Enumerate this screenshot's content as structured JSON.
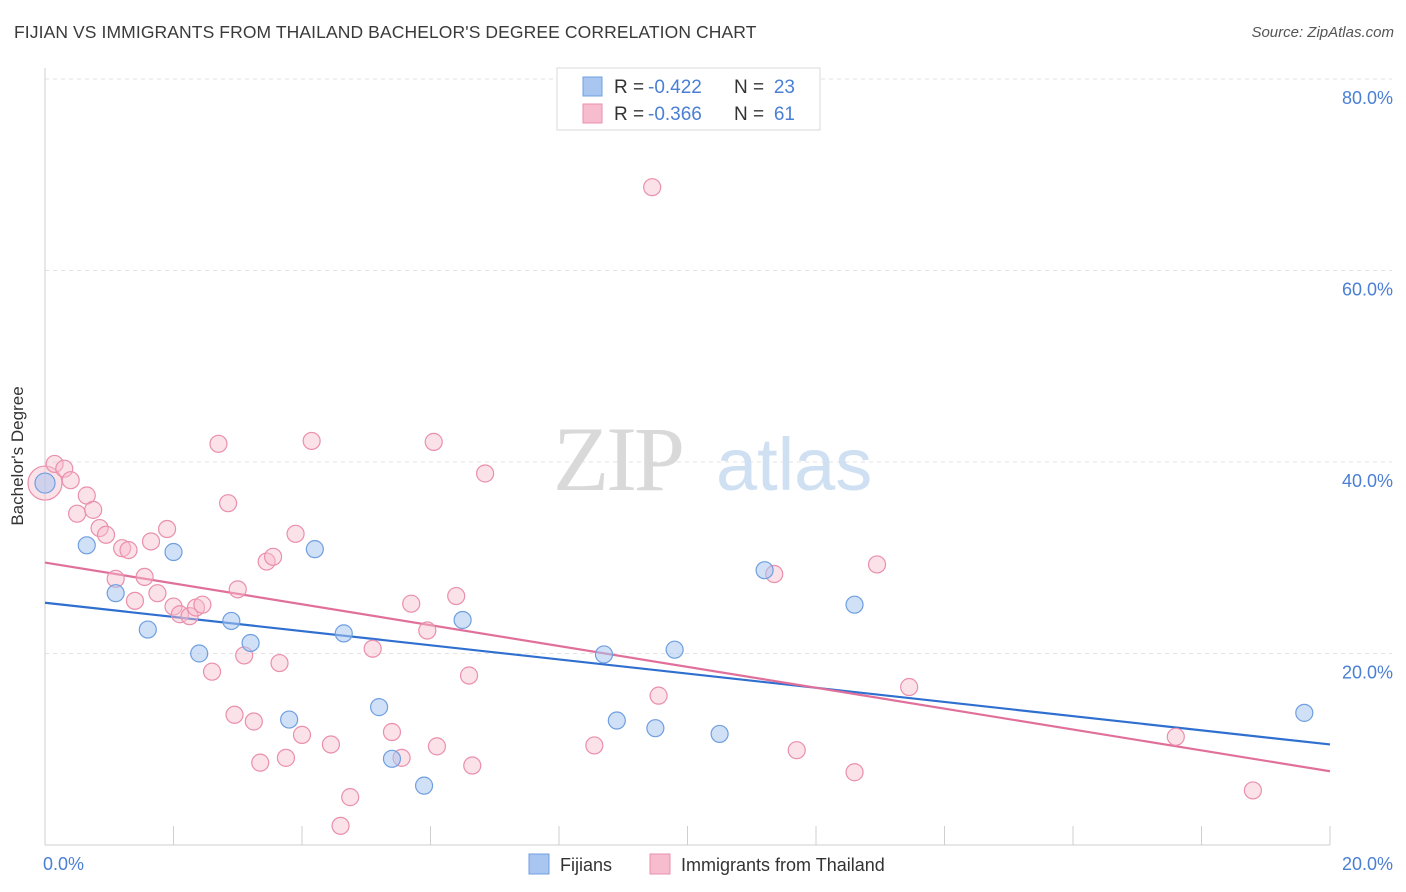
{
  "title": "FIJIAN VS IMMIGRANTS FROM THAILAND BACHELOR'S DEGREE CORRELATION CHART",
  "source": "Source: ZipAtlas.com",
  "watermark": {
    "zip": "ZIP",
    "atlas": "atlas"
  },
  "legend_top": [
    {
      "r_label": "R = ",
      "r_value": "-0.422",
      "n_label": "N = ",
      "n_value": "23",
      "color": "#a9c6f0",
      "border": "#6f9fe0"
    },
    {
      "r_label": "R = ",
      "r_value": "-0.366",
      "n_label": "N = ",
      "n_value": "61",
      "color": "#f7bccd",
      "border": "#ea8fac"
    }
  ],
  "legend_bottom": [
    {
      "label": "Fijians",
      "color": "#a9c6f0",
      "border": "#6f9fe0"
    },
    {
      "label": "Immigrants from Thailand",
      "color": "#f7bccd",
      "border": "#ea8fac"
    }
  ],
  "colors": {
    "accent_text": "#4a7fd4",
    "blue_line": "#2f6fcf",
    "pink_line": "#e0709a"
  },
  "chart_data": {
    "type": "scatter",
    "title": "FIJIAN VS IMMIGRANTS FROM THAILAND BACHELOR'S DEGREE CORRELATION CHART",
    "xlabel": "",
    "ylabel": "Bachelor's Degree",
    "xlim": [
      0,
      20
    ],
    "ylim": [
      0,
      80
    ],
    "x_tick_labels": [
      "0.0%",
      "20.0%"
    ],
    "y_ticks": [
      20,
      40,
      60,
      80
    ],
    "y_tick_labels": [
      "20.0%",
      "40.0%",
      "60.0%",
      "80.0%"
    ],
    "grid": true,
    "legend_placement": "top-center",
    "series": [
      {
        "name": "Fijians",
        "points": [
          [
            0.0,
            37.8
          ],
          [
            0.65,
            31.3
          ],
          [
            1.1,
            26.3
          ],
          [
            1.6,
            22.5
          ],
          [
            2.0,
            30.6
          ],
          [
            2.4,
            20.0
          ],
          [
            2.9,
            23.4
          ],
          [
            3.2,
            21.1
          ],
          [
            3.8,
            13.1
          ],
          [
            4.2,
            30.9
          ],
          [
            4.65,
            22.1
          ],
          [
            5.2,
            14.4
          ],
          [
            5.4,
            9.0
          ],
          [
            5.9,
            6.2
          ],
          [
            6.5,
            23.5
          ],
          [
            8.7,
            19.9
          ],
          [
            8.9,
            13.0
          ],
          [
            9.5,
            12.2
          ],
          [
            9.8,
            20.4
          ],
          [
            10.5,
            11.6
          ],
          [
            11.2,
            28.7
          ],
          [
            12.6,
            25.1
          ],
          [
            19.6,
            13.8
          ]
        ],
        "trend": [
          [
            0,
            25.3
          ],
          [
            20,
            10.5
          ]
        ]
      },
      {
        "name": "Immigrants from Thailand",
        "points": [
          [
            0.0,
            37.8
          ],
          [
            0.15,
            39.8
          ],
          [
            0.3,
            39.3
          ],
          [
            0.4,
            38.1
          ],
          [
            0.5,
            34.6
          ],
          [
            0.65,
            36.5
          ],
          [
            0.75,
            35.0
          ],
          [
            0.85,
            33.1
          ],
          [
            0.95,
            32.4
          ],
          [
            1.1,
            27.8
          ],
          [
            1.2,
            31.0
          ],
          [
            1.3,
            30.8
          ],
          [
            1.4,
            25.5
          ],
          [
            1.55,
            28.0
          ],
          [
            1.65,
            31.7
          ],
          [
            1.75,
            26.3
          ],
          [
            1.9,
            33.0
          ],
          [
            2.0,
            24.9
          ],
          [
            2.1,
            24.1
          ],
          [
            2.25,
            23.9
          ],
          [
            2.35,
            24.8
          ],
          [
            2.45,
            25.1
          ],
          [
            2.6,
            18.1
          ],
          [
            2.7,
            41.9
          ],
          [
            2.85,
            35.7
          ],
          [
            2.95,
            13.6
          ],
          [
            3.0,
            26.7
          ],
          [
            3.1,
            19.8
          ],
          [
            3.25,
            12.9
          ],
          [
            3.35,
            8.6
          ],
          [
            3.45,
            29.6
          ],
          [
            3.55,
            30.1
          ],
          [
            3.65,
            19.0
          ],
          [
            3.75,
            9.1
          ],
          [
            3.9,
            32.5
          ],
          [
            4.0,
            11.5
          ],
          [
            4.15,
            42.2
          ],
          [
            4.45,
            10.5
          ],
          [
            4.6,
            2.0
          ],
          [
            4.75,
            5.0
          ],
          [
            5.1,
            20.5
          ],
          [
            5.4,
            11.8
          ],
          [
            5.55,
            9.1
          ],
          [
            5.7,
            25.2
          ],
          [
            5.95,
            22.4
          ],
          [
            6.05,
            42.1
          ],
          [
            6.1,
            10.3
          ],
          [
            6.4,
            26.0
          ],
          [
            6.6,
            17.7
          ],
          [
            6.65,
            8.3
          ],
          [
            6.85,
            38.8
          ],
          [
            8.55,
            10.4
          ],
          [
            9.45,
            68.7
          ],
          [
            9.55,
            15.6
          ],
          [
            11.35,
            28.3
          ],
          [
            11.7,
            9.9
          ],
          [
            12.6,
            7.6
          ],
          [
            12.95,
            29.3
          ],
          [
            13.45,
            16.5
          ],
          [
            17.6,
            11.3
          ],
          [
            18.8,
            5.7
          ]
        ],
        "trend": [
          [
            0,
            29.5
          ],
          [
            20,
            7.7
          ]
        ]
      }
    ]
  }
}
